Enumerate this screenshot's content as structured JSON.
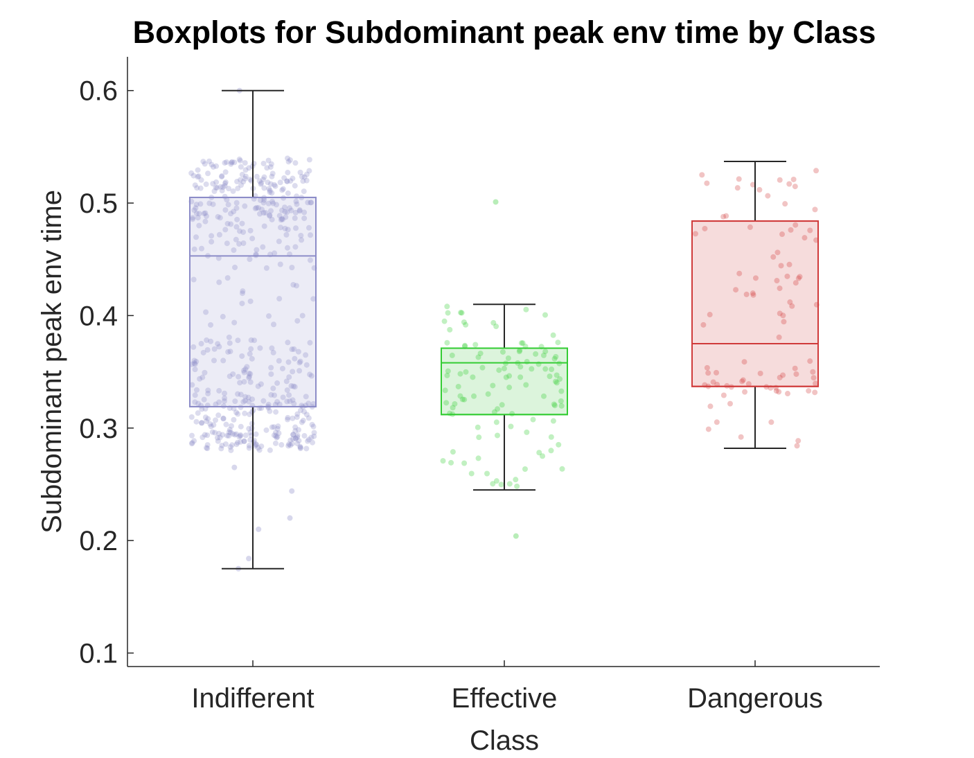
{
  "chart_data": {
    "type": "boxplot",
    "title": "Boxplots for Subdominant peak env time by Class",
    "xlabel": "Class",
    "ylabel": "Subdominant peak env time",
    "ylim": [
      0.088,
      0.63
    ],
    "yticks": [
      "0.1",
      "0.2",
      "0.3",
      "0.4",
      "0.5",
      "0.6"
    ],
    "grid": false,
    "categories": [
      "Indifferent",
      "Effective",
      "Dangerous"
    ],
    "boxes": [
      {
        "category": "Indifferent",
        "color": "#8c8cc8",
        "fill": "#e9e9f4",
        "q1": 0.319,
        "median": 0.453,
        "q3": 0.505,
        "whisker_low": 0.175,
        "whisker_high": 0.6,
        "n_points": 520,
        "point_density": [
          [
            0.28,
            0.3,
            0.18
          ],
          [
            0.3,
            0.33,
            0.18
          ],
          [
            0.33,
            0.38,
            0.16
          ],
          [
            0.38,
            0.45,
            0.05
          ],
          [
            0.45,
            0.49,
            0.12
          ],
          [
            0.49,
            0.54,
            0.31
          ]
        ],
        "outliers": [
          0.6,
          0.175,
          0.184,
          0.22,
          0.21,
          0.244,
          0.265
        ]
      },
      {
        "category": "Effective",
        "color": "#33cc33",
        "fill": "#d6f2d6",
        "q1": 0.312,
        "median": 0.358,
        "q3": 0.371,
        "whisker_low": 0.245,
        "whisker_high": 0.41,
        "n_points": 110,
        "point_density": [
          [
            0.245,
            0.31,
            0.25
          ],
          [
            0.31,
            0.345,
            0.25
          ],
          [
            0.345,
            0.375,
            0.35
          ],
          [
            0.375,
            0.41,
            0.15
          ]
        ],
        "outliers": [
          0.501,
          0.204
        ]
      },
      {
        "category": "Dangerous",
        "color": "#d03a3a",
        "fill": "#f4d6d6",
        "q1": 0.337,
        "median": 0.375,
        "q3": 0.484,
        "whisker_low": 0.282,
        "whisker_high": 0.537,
        "n_points": 90,
        "point_density": [
          [
            0.282,
            0.33,
            0.1
          ],
          [
            0.33,
            0.35,
            0.3
          ],
          [
            0.35,
            0.4,
            0.08
          ],
          [
            0.4,
            0.45,
            0.22
          ],
          [
            0.45,
            0.537,
            0.3
          ]
        ],
        "outliers": []
      }
    ]
  }
}
